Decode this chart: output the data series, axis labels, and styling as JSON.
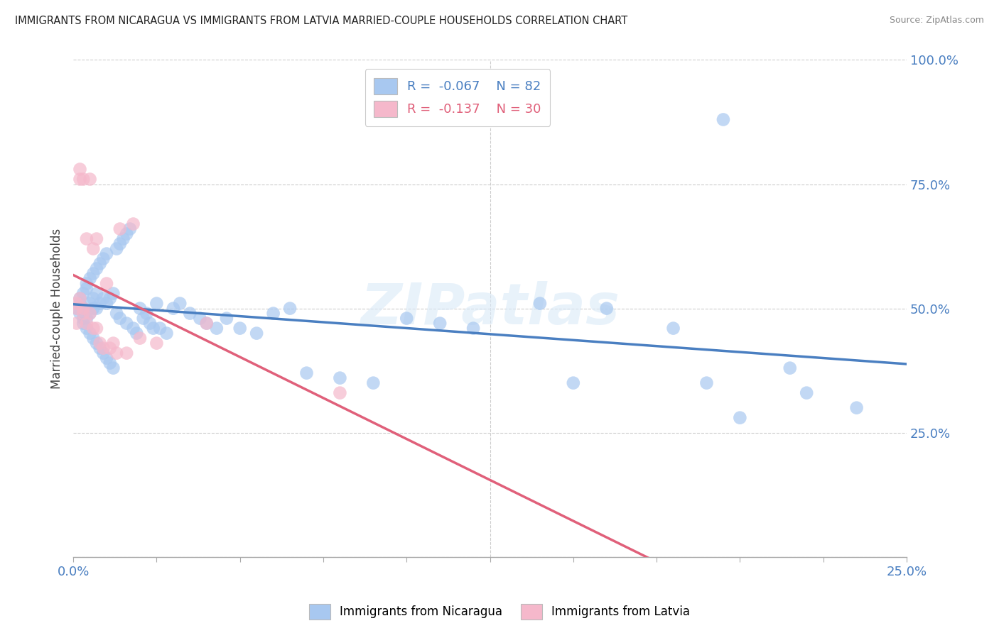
{
  "title": "IMMIGRANTS FROM NICARAGUA VS IMMIGRANTS FROM LATVIA MARRIED-COUPLE HOUSEHOLDS CORRELATION CHART",
  "source": "Source: ZipAtlas.com",
  "ylabel": "Married-couple Households",
  "xlim": [
    0.0,
    0.25
  ],
  "ylim": [
    0.0,
    1.0
  ],
  "nicaragua_color": "#a8c8f0",
  "latvia_color": "#f5b8cb",
  "nicaragua_line_color": "#4a7fc1",
  "latvia_line_color": "#e0607a",
  "legend_r_nicaragua": "-0.067",
  "legend_n_nicaragua": "82",
  "legend_r_latvia": "-0.137",
  "legend_n_latvia": "30",
  "watermark": "ZIPatlas",
  "nic_x": [
    0.001,
    0.002,
    0.002,
    0.002,
    0.003,
    0.003,
    0.003,
    0.003,
    0.004,
    0.004,
    0.004,
    0.004,
    0.005,
    0.005,
    0.005,
    0.005,
    0.006,
    0.006,
    0.006,
    0.006,
    0.007,
    0.007,
    0.007,
    0.007,
    0.008,
    0.008,
    0.008,
    0.009,
    0.009,
    0.009,
    0.01,
    0.01,
    0.01,
    0.011,
    0.011,
    0.012,
    0.012,
    0.013,
    0.013,
    0.014,
    0.014,
    0.015,
    0.016,
    0.016,
    0.017,
    0.018,
    0.019,
    0.02,
    0.021,
    0.022,
    0.023,
    0.024,
    0.025,
    0.026,
    0.028,
    0.03,
    0.032,
    0.035,
    0.038,
    0.04,
    0.043,
    0.046,
    0.05,
    0.055,
    0.06,
    0.065,
    0.07,
    0.08,
    0.09,
    0.1,
    0.11,
    0.12,
    0.14,
    0.15,
    0.16,
    0.18,
    0.19,
    0.2,
    0.215,
    0.235,
    0.195,
    0.22
  ],
  "nic_y": [
    0.5,
    0.49,
    0.51,
    0.52,
    0.48,
    0.53,
    0.47,
    0.5,
    0.46,
    0.54,
    0.55,
    0.48,
    0.45,
    0.56,
    0.49,
    0.51,
    0.44,
    0.57,
    0.5,
    0.52,
    0.43,
    0.58,
    0.5,
    0.53,
    0.42,
    0.59,
    0.51,
    0.41,
    0.6,
    0.52,
    0.4,
    0.61,
    0.51,
    0.39,
    0.52,
    0.38,
    0.53,
    0.62,
    0.49,
    0.63,
    0.48,
    0.64,
    0.65,
    0.47,
    0.66,
    0.46,
    0.45,
    0.5,
    0.48,
    0.49,
    0.47,
    0.46,
    0.51,
    0.46,
    0.45,
    0.5,
    0.51,
    0.49,
    0.48,
    0.47,
    0.46,
    0.48,
    0.46,
    0.45,
    0.49,
    0.5,
    0.37,
    0.36,
    0.35,
    0.48,
    0.47,
    0.46,
    0.51,
    0.35,
    0.5,
    0.46,
    0.35,
    0.28,
    0.38,
    0.3,
    0.88,
    0.33
  ],
  "lat_x": [
    0.001,
    0.001,
    0.001,
    0.002,
    0.002,
    0.002,
    0.003,
    0.003,
    0.003,
    0.004,
    0.004,
    0.005,
    0.005,
    0.006,
    0.006,
    0.007,
    0.007,
    0.008,
    0.009,
    0.01,
    0.011,
    0.012,
    0.013,
    0.014,
    0.016,
    0.018,
    0.02,
    0.025,
    0.04,
    0.08
  ],
  "lat_y": [
    0.5,
    0.51,
    0.47,
    0.78,
    0.76,
    0.52,
    0.76,
    0.49,
    0.5,
    0.64,
    0.47,
    0.76,
    0.49,
    0.62,
    0.46,
    0.46,
    0.64,
    0.43,
    0.42,
    0.55,
    0.42,
    0.43,
    0.41,
    0.66,
    0.41,
    0.67,
    0.44,
    0.43,
    0.47,
    0.33
  ]
}
